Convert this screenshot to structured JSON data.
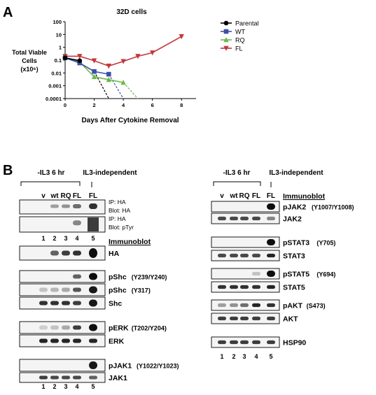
{
  "panel_a": {
    "letter": "A",
    "chart_data": {
      "type": "line",
      "title": "32D cells",
      "xlabel": "Days After Cytokine Removal",
      "ylabel_lines": [
        "Total Viable",
        "Cells",
        "(x10⁶)"
      ],
      "y_scale": "log",
      "xlim": [
        0,
        9
      ],
      "ylim": [
        0.0001,
        100
      ],
      "x_ticks": [
        "0",
        "2",
        "4",
        "6",
        "8"
      ],
      "y_ticks": [
        "0.0001",
        "0.001",
        "0.01",
        "0.1",
        "1",
        "10",
        "100"
      ],
      "legend_position": "top-right",
      "series": [
        {
          "name": "Parental",
          "marker": "circle",
          "color": "#000000",
          "x": [
            0,
            1
          ],
          "y": [
            0.15,
            0.09
          ]
        },
        {
          "name": "WT",
          "marker": "square",
          "color": "#3b4fa8",
          "x": [
            0,
            1,
            2,
            3
          ],
          "y": [
            0.15,
            0.06,
            0.013,
            0.008
          ]
        },
        {
          "name": "RQ",
          "marker": "triangle-up",
          "color": "#6cb84a",
          "x": [
            0,
            1,
            2,
            3,
            4
          ],
          "y": [
            0.15,
            0.07,
            0.005,
            0.003,
            0.0018
          ]
        },
        {
          "name": "FL",
          "marker": "triangle-down",
          "color": "#c0393b",
          "x": [
            0,
            1,
            2,
            3,
            4,
            5,
            6,
            8
          ],
          "y": [
            0.2,
            0.2,
            0.09,
            0.035,
            0.08,
            0.2,
            0.38,
            7
          ]
        }
      ],
      "extrapolations": [
        {
          "color": "#000000",
          "from": [
            2,
            0.013
          ],
          "to": [
            3,
            0.0001
          ]
        },
        {
          "color": "#3b4fa8",
          "from": [
            3,
            0.008
          ],
          "to": [
            4,
            0.0001
          ]
        },
        {
          "color": "#6cb84a",
          "from": [
            4,
            0.0018
          ],
          "to": [
            5,
            0.0001
          ]
        }
      ]
    }
  },
  "panel_b": {
    "letter": "B",
    "left": {
      "condition_label": "-IL3 6 hr",
      "independent_label": "IL3-independent",
      "lanes": [
        "v",
        "wt",
        "RQ",
        "FL"
      ],
      "lane_independent": "FL",
      "ip_blots": [
        {
          "lines": [
            "IP: HA",
            "Blot: HA"
          ]
        },
        {
          "lines": [
            "IP: HA",
            "Blot: pTyr"
          ]
        }
      ],
      "lane_numbers_top": [
        "1",
        "2",
        "3",
        "4",
        "5"
      ],
      "immunoblot_heading": "Immunoblot",
      "blots": [
        {
          "label": "HA",
          "site": ""
        },
        {
          "label": "pShc",
          "site": "(Y239/Y240)"
        },
        {
          "label": "pShc",
          "site": "(Y317)"
        },
        {
          "label": "Shc",
          "site": ""
        },
        {
          "label": "pERK",
          "site": "(T202/Y204)"
        },
        {
          "label": "ERK",
          "site": ""
        },
        {
          "label": "pJAK1",
          "site": "(Y1022/Y1023)"
        },
        {
          "label": "JAK1",
          "site": ""
        }
      ],
      "lane_numbers_bottom": [
        "1",
        "2",
        "3",
        "4",
        "5"
      ]
    },
    "right": {
      "condition_label": "-IL3 6 hr",
      "independent_label": "IL3-independent",
      "lanes": [
        "v",
        "wt",
        "RQ",
        "FL"
      ],
      "lane_independent": "FL",
      "immunoblot_heading": "Immunoblot",
      "blots": [
        {
          "label": "pJAK2",
          "site": "(Y1007/Y1008)"
        },
        {
          "label": "JAK2",
          "site": ""
        },
        {
          "label": "pSTAT3",
          "site": "(Y705)"
        },
        {
          "label": "STAT3",
          "site": ""
        },
        {
          "label": "pSTAT5",
          "site": "(Y694)"
        },
        {
          "label": "STAT5",
          "site": ""
        },
        {
          "label": "pAKT",
          "site": "(S473)"
        },
        {
          "label": "AKT",
          "site": ""
        },
        {
          "label": "HSP90",
          "site": ""
        }
      ],
      "lane_numbers_bottom": [
        "1",
        "2",
        "3",
        "4",
        "5"
      ]
    }
  }
}
